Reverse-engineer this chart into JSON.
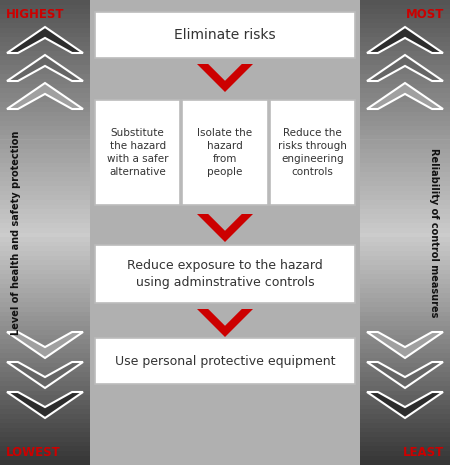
{
  "background_color": "#aaaaaa",
  "box_fill": "#ffffff",
  "box_edge": "#bbbbbb",
  "red_color": "#cc0000",
  "dark_text": "#333333",
  "red_text": "#cc0000",
  "title_highest": "HIGHEST",
  "title_lowest": "LOWEST",
  "title_most": "MOST",
  "title_least": "LEAST",
  "left_label": "Level of health and safety protection",
  "right_label": "Reliability of control measures",
  "box1_text": "Eliminate risks",
  "box2a_text": "Substitute\nthe hazard\nwith a safer\nalternative",
  "box2b_text": "Isolate the\nhazard\nfrom\npeople",
  "box2c_text": "Reduce the\nrisks through\nengineering\ncontrols",
  "box3_text": "Reduce exposure to the hazard\nusing adminstrative controls",
  "box4_text": "Use personal protective equipment",
  "figsize": [
    4.5,
    4.65
  ],
  "dpi": 100
}
